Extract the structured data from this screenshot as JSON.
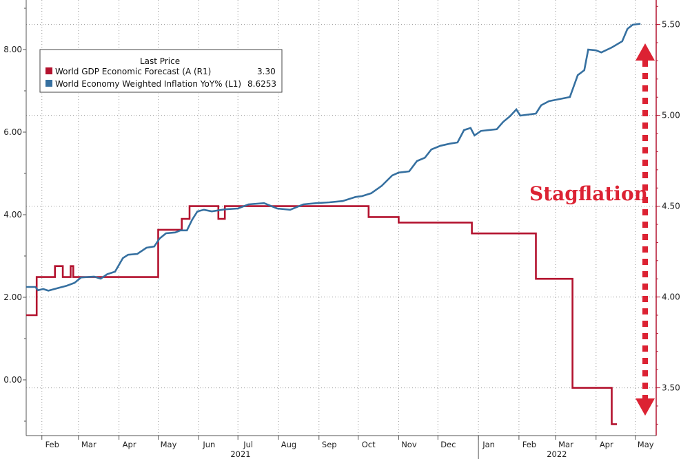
{
  "colors": {
    "gdp": "#b3122e",
    "inflation": "#3670a0",
    "annotation": "#dc2233",
    "grid": "#9a9a9a"
  },
  "legend": {
    "header": "Last Price",
    "items": [
      {
        "label": "World GDP Economic Forecast (A  (R1)",
        "value": "3.30",
        "color": "#b3122e"
      },
      {
        "label": "World Economy Weighted Inflation YoY%  (L1)",
        "value": "8.6253",
        "color": "#3670a0"
      }
    ]
  },
  "annotation": {
    "text": "Stagflation"
  },
  "chart_data": {
    "type": "line",
    "x_unit": "days since 2021-02-01",
    "x_month_labels": [
      {
        "label": "Feb",
        "x": 0
      },
      {
        "label": "Mar",
        "x": 28
      },
      {
        "label": "Apr",
        "x": 59
      },
      {
        "label": "May",
        "x": 89
      },
      {
        "label": "Jun",
        "x": 120
      },
      {
        "label": "Jul",
        "x": 150
      },
      {
        "label": "Aug",
        "x": 181
      },
      {
        "label": "Sep",
        "x": 212
      },
      {
        "label": "Oct",
        "x": 242
      },
      {
        "label": "Nov",
        "x": 273
      },
      {
        "label": "Dec",
        "x": 303
      },
      {
        "label": "Jan",
        "x": 334
      },
      {
        "label": "Feb",
        "x": 365
      },
      {
        "label": "Mar",
        "x": 393
      },
      {
        "label": "Apr",
        "x": 424
      },
      {
        "label": "May",
        "x": 454
      }
    ],
    "x_year_labels": [
      {
        "label": "2021",
        "x": 152
      },
      {
        "label": "2022",
        "x": 394
      }
    ],
    "xlim": [
      -12,
      470
    ],
    "y_left": {
      "ticks": [
        "0.00",
        "2.00",
        "4.00",
        "6.00",
        "8.00"
      ],
      "tick_values": [
        0,
        2,
        4,
        6,
        8
      ],
      "lim": [
        -1.35,
        9.2
      ]
    },
    "y_right": {
      "ticks": [
        "3.50",
        "4.00",
        "4.50",
        "5.00",
        "5.50"
      ],
      "tick_values": [
        3.5,
        4.0,
        4.5,
        5.0,
        5.5
      ],
      "lim": [
        3.237,
        5.635
      ]
    },
    "series": [
      {
        "name": "World GDP Economic Forecast (A  (R1)",
        "axis": "right",
        "step": true,
        "points": [
          [
            -12,
            3.9
          ],
          [
            -4,
            4.11
          ],
          [
            10,
            4.17
          ],
          [
            16,
            4.11
          ],
          [
            22,
            4.17
          ],
          [
            24,
            4.11
          ],
          [
            89,
            4.37
          ],
          [
            107,
            4.43
          ],
          [
            113,
            4.5
          ],
          [
            135,
            4.43
          ],
          [
            140,
            4.5
          ],
          [
            250,
            4.44
          ],
          [
            273,
            4.41
          ],
          [
            329,
            4.35
          ],
          [
            378,
            4.1
          ],
          [
            406,
            3.5
          ],
          [
            436,
            3.3
          ],
          [
            440,
            3.3
          ]
        ]
      },
      {
        "name": "World Economy Weighted Inflation YoY%  (L1)",
        "axis": "left",
        "step": false,
        "points": [
          [
            -12,
            2.25
          ],
          [
            -5,
            2.25
          ],
          [
            -3,
            2.17
          ],
          [
            1,
            2.2
          ],
          [
            5,
            2.16
          ],
          [
            12,
            2.22
          ],
          [
            19,
            2.28
          ],
          [
            25,
            2.35
          ],
          [
            30,
            2.48
          ],
          [
            40,
            2.5
          ],
          [
            45,
            2.45
          ],
          [
            50,
            2.56
          ],
          [
            56,
            2.62
          ],
          [
            62,
            2.95
          ],
          [
            66,
            3.03
          ],
          [
            73,
            3.05
          ],
          [
            80,
            3.2
          ],
          [
            86,
            3.23
          ],
          [
            90,
            3.42
          ],
          [
            95,
            3.55
          ],
          [
            102,
            3.57
          ],
          [
            106,
            3.62
          ],
          [
            111,
            3.62
          ],
          [
            115,
            3.88
          ],
          [
            119,
            4.08
          ],
          [
            124,
            4.12
          ],
          [
            130,
            4.08
          ],
          [
            140,
            4.13
          ],
          [
            150,
            4.15
          ],
          [
            158,
            4.25
          ],
          [
            170,
            4.28
          ],
          [
            180,
            4.15
          ],
          [
            190,
            4.12
          ],
          [
            200,
            4.25
          ],
          [
            210,
            4.28
          ],
          [
            220,
            4.3
          ],
          [
            230,
            4.33
          ],
          [
            240,
            4.43
          ],
          [
            245,
            4.45
          ],
          [
            252,
            4.52
          ],
          [
            260,
            4.7
          ],
          [
            268,
            4.95
          ],
          [
            273,
            5.02
          ],
          [
            281,
            5.05
          ],
          [
            287,
            5.3
          ],
          [
            293,
            5.38
          ],
          [
            298,
            5.58
          ],
          [
            305,
            5.67
          ],
          [
            312,
            5.72
          ],
          [
            318,
            5.75
          ],
          [
            323,
            6.05
          ],
          [
            328,
            6.1
          ],
          [
            331,
            5.92
          ],
          [
            336,
            6.03
          ],
          [
            348,
            6.07
          ],
          [
            353,
            6.25
          ],
          [
            358,
            6.38
          ],
          [
            363,
            6.55
          ],
          [
            366,
            6.4
          ],
          [
            378,
            6.45
          ],
          [
            382,
            6.65
          ],
          [
            388,
            6.75
          ],
          [
            396,
            6.8
          ],
          [
            404,
            6.85
          ],
          [
            410,
            7.38
          ],
          [
            415,
            7.5
          ],
          [
            418,
            8.0
          ],
          [
            424,
            7.98
          ],
          [
            428,
            7.93
          ],
          [
            436,
            8.05
          ],
          [
            444,
            8.2
          ],
          [
            448,
            8.5
          ],
          [
            452,
            8.6
          ],
          [
            458,
            8.6253
          ]
        ]
      }
    ],
    "ylabel": "",
    "xlabel": "",
    "grid": true,
    "legend_position": "top-left"
  }
}
